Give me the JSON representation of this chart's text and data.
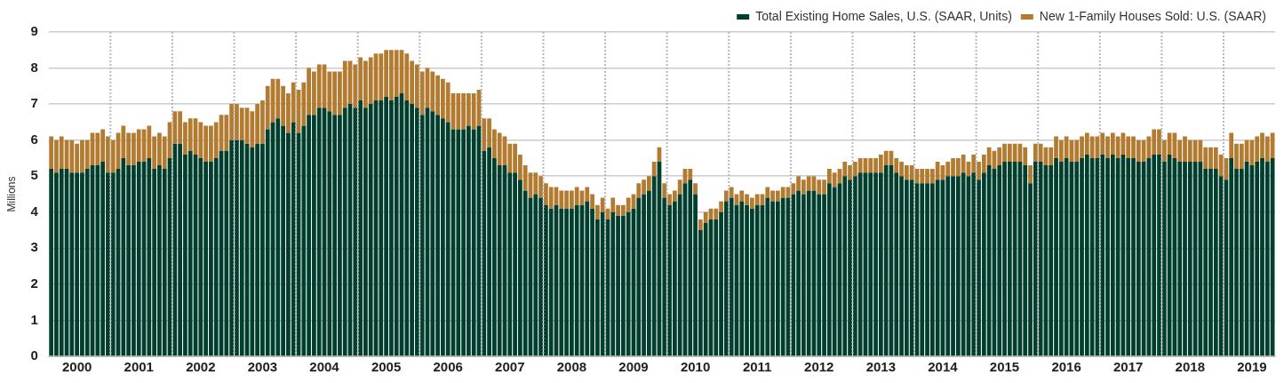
{
  "chart_data": {
    "type": "bar",
    "stacked": true,
    "ylabel": "Millions",
    "ylim": [
      0,
      9
    ],
    "yticks": [
      0,
      1,
      2,
      3,
      4,
      5,
      6,
      7,
      8,
      9
    ],
    "grid": true,
    "legend": "top right",
    "categories": [
      null,
      null,
      null,
      null,
      null,
      "2000",
      null,
      null,
      null,
      null,
      null,
      null,
      null,
      null,
      null,
      null,
      null,
      "2001",
      null,
      null,
      null,
      null,
      null,
      null,
      null,
      null,
      null,
      null,
      null,
      "2002",
      null,
      null,
      null,
      null,
      null,
      null,
      null,
      null,
      null,
      null,
      null,
      "2003",
      null,
      null,
      null,
      null,
      null,
      null,
      null,
      null,
      null,
      null,
      null,
      "2004",
      null,
      null,
      null,
      null,
      null,
      null,
      null,
      null,
      null,
      null,
      null,
      "2005",
      null,
      null,
      null,
      null,
      null,
      null,
      null,
      null,
      null,
      null,
      null,
      "2006",
      null,
      null,
      null,
      null,
      null,
      null,
      null,
      null,
      null,
      null,
      null,
      "2007",
      null,
      null,
      null,
      null,
      null,
      null,
      null,
      null,
      null,
      null,
      null,
      "2008",
      null,
      null,
      null,
      null,
      null,
      null,
      null,
      null,
      null,
      null,
      null,
      "2009",
      null,
      null,
      null,
      null,
      null,
      null,
      null,
      null,
      null,
      null,
      null,
      "2010",
      null,
      null,
      null,
      null,
      null,
      null,
      null,
      null,
      null,
      null,
      null,
      "2011",
      null,
      null,
      null,
      null,
      null,
      null,
      null,
      null,
      null,
      null,
      null,
      "2012",
      null,
      null,
      null,
      null,
      null,
      null,
      null,
      null,
      null,
      null,
      null,
      "2013",
      null,
      null,
      null,
      null,
      null,
      null,
      null,
      null,
      null,
      null,
      null,
      "2014",
      null,
      null,
      null,
      null,
      null,
      null,
      null,
      null,
      null,
      null,
      null,
      "2015",
      null,
      null,
      null,
      null,
      null,
      null,
      null,
      null,
      null,
      null,
      null,
      "2016",
      null,
      null,
      null,
      null,
      null,
      null,
      null,
      null,
      null,
      null,
      null,
      "2017",
      null,
      null,
      null,
      null,
      null,
      null,
      null,
      null,
      null,
      null,
      null,
      "2018",
      null,
      null,
      null,
      null,
      null,
      null,
      null,
      null,
      null,
      null,
      null,
      "2019",
      null,
      null,
      null,
      null
    ],
    "series": [
      {
        "name": "Total Existing Home Sales, U.S. (SAAR, Units)",
        "color": "#003f2d",
        "values": [
          5.2,
          5.1,
          5.2,
          5.2,
          5.1,
          5.1,
          5.1,
          5.2,
          5.3,
          5.3,
          5.4,
          5.1,
          5.1,
          5.2,
          5.5,
          5.3,
          5.3,
          5.4,
          5.4,
          5.5,
          5.2,
          5.3,
          5.2,
          5.5,
          5.9,
          5.9,
          5.6,
          5.7,
          5.6,
          5.5,
          5.4,
          5.4,
          5.5,
          5.7,
          5.7,
          6.0,
          6.0,
          6.0,
          5.9,
          5.8,
          5.9,
          5.9,
          6.3,
          6.5,
          6.6,
          6.4,
          6.2,
          6.5,
          6.2,
          6.4,
          6.7,
          6.7,
          6.9,
          6.9,
          6.8,
          6.7,
          6.7,
          6.9,
          7.0,
          6.9,
          7.1,
          6.9,
          7.0,
          7.1,
          7.1,
          7.2,
          7.1,
          7.2,
          7.3,
          7.1,
          7.0,
          6.9,
          6.7,
          6.9,
          6.8,
          6.7,
          6.6,
          6.5,
          6.3,
          6.3,
          6.3,
          6.4,
          6.3,
          6.4,
          5.7,
          5.8,
          5.5,
          5.3,
          5.3,
          5.1,
          5.1,
          4.9,
          4.6,
          4.4,
          4.5,
          4.4,
          4.2,
          4.1,
          4.2,
          4.1,
          4.1,
          4.1,
          4.2,
          4.2,
          4.3,
          4.1,
          3.8,
          4.0,
          3.8,
          4.0,
          3.9,
          3.9,
          4.0,
          4.1,
          4.4,
          4.5,
          4.6,
          5.0,
          5.4,
          4.4,
          4.2,
          4.3,
          4.5,
          4.8,
          4.9,
          4.5,
          3.5,
          3.7,
          3.8,
          3.8,
          4.0,
          4.3,
          4.4,
          4.2,
          4.3,
          4.2,
          4.1,
          4.2,
          4.2,
          4.4,
          4.3,
          4.3,
          4.4,
          4.4,
          4.5,
          4.6,
          4.5,
          4.6,
          4.6,
          4.5,
          4.5,
          4.8,
          4.7,
          4.8,
          5.0,
          4.9,
          5.0,
          5.1,
          5.1,
          5.1,
          5.1,
          5.1,
          5.3,
          5.3,
          5.1,
          5.0,
          4.9,
          4.9,
          4.8,
          4.8,
          4.8,
          4.8,
          4.9,
          4.9,
          5.0,
          5.0,
          5.0,
          5.1,
          5.0,
          5.1,
          4.9,
          5.1,
          5.3,
          5.2,
          5.3,
          5.4,
          5.4,
          5.4,
          5.4,
          5.3,
          4.8,
          5.4,
          5.4,
          5.3,
          5.3,
          5.5,
          5.4,
          5.5,
          5.4,
          5.4,
          5.5,
          5.6,
          5.5,
          5.5,
          5.6,
          5.5,
          5.6,
          5.5,
          5.6,
          5.5,
          5.5,
          5.4,
          5.4,
          5.5,
          5.6,
          5.6,
          5.4,
          5.6,
          5.5,
          5.4,
          5.4,
          5.4,
          5.4,
          5.4,
          5.2,
          5.2,
          5.2,
          5.0,
          4.9,
          5.5,
          5.2,
          5.2,
          5.4,
          5.3,
          5.4,
          5.5,
          5.4,
          5.5
        ]
      },
      {
        "name": "New 1-Family Houses Sold: U.S. (SAAR)",
        "color": "#b27b30",
        "values": [
          0.9,
          0.9,
          0.9,
          0.8,
          0.9,
          0.8,
          0.9,
          0.8,
          0.9,
          0.9,
          0.9,
          1.0,
          0.9,
          1.0,
          0.9,
          0.9,
          0.9,
          0.9,
          0.9,
          0.9,
          0.9,
          0.9,
          0.9,
          1.0,
          0.9,
          0.9,
          0.9,
          0.9,
          1.0,
          1.0,
          1.0,
          1.0,
          1.0,
          1.0,
          1.0,
          1.0,
          1.0,
          0.9,
          1.0,
          1.0,
          1.1,
          1.2,
          1.2,
          1.2,
          1.1,
          1.1,
          1.1,
          1.1,
          1.2,
          1.2,
          1.3,
          1.2,
          1.2,
          1.2,
          1.1,
          1.2,
          1.2,
          1.3,
          1.2,
          1.2,
          1.2,
          1.3,
          1.3,
          1.3,
          1.3,
          1.3,
          1.4,
          1.3,
          1.2,
          1.3,
          1.2,
          1.2,
          1.2,
          1.1,
          1.1,
          1.1,
          1.1,
          1.1,
          1.0,
          1.0,
          1.0,
          0.9,
          1.0,
          1.0,
          0.9,
          0.8,
          0.8,
          0.9,
          0.8,
          0.8,
          0.8,
          0.7,
          0.7,
          0.7,
          0.6,
          0.6,
          0.6,
          0.6,
          0.5,
          0.5,
          0.5,
          0.5,
          0.5,
          0.4,
          0.4,
          0.4,
          0.4,
          0.4,
          0.3,
          0.4,
          0.3,
          0.3,
          0.4,
          0.4,
          0.4,
          0.4,
          0.4,
          0.4,
          0.4,
          0.4,
          0.3,
          0.3,
          0.4,
          0.4,
          0.3,
          0.3,
          0.3,
          0.3,
          0.3,
          0.3,
          0.3,
          0.3,
          0.3,
          0.3,
          0.3,
          0.3,
          0.3,
          0.3,
          0.3,
          0.3,
          0.3,
          0.3,
          0.3,
          0.3,
          0.3,
          0.4,
          0.4,
          0.4,
          0.4,
          0.4,
          0.4,
          0.4,
          0.4,
          0.4,
          0.4,
          0.4,
          0.4,
          0.4,
          0.4,
          0.4,
          0.4,
          0.5,
          0.4,
          0.4,
          0.4,
          0.4,
          0.4,
          0.4,
          0.4,
          0.4,
          0.4,
          0.4,
          0.5,
          0.4,
          0.4,
          0.5,
          0.5,
          0.5,
          0.4,
          0.5,
          0.5,
          0.5,
          0.5,
          0.5,
          0.5,
          0.5,
          0.5,
          0.5,
          0.5,
          0.5,
          0.5,
          0.5,
          0.5,
          0.5,
          0.5,
          0.6,
          0.6,
          0.6,
          0.6,
          0.6,
          0.6,
          0.6,
          0.6,
          0.6,
          0.6,
          0.6,
          0.6,
          0.6,
          0.6,
          0.6,
          0.6,
          0.6,
          0.6,
          0.6,
          0.7,
          0.7,
          0.6,
          0.6,
          0.7,
          0.6,
          0.7,
          0.6,
          0.6,
          0.6,
          0.6,
          0.6,
          0.6,
          0.6,
          0.6,
          0.7,
          0.7,
          0.7,
          0.6,
          0.7,
          0.7,
          0.7,
          0.7,
          0.7
        ]
      }
    ]
  }
}
